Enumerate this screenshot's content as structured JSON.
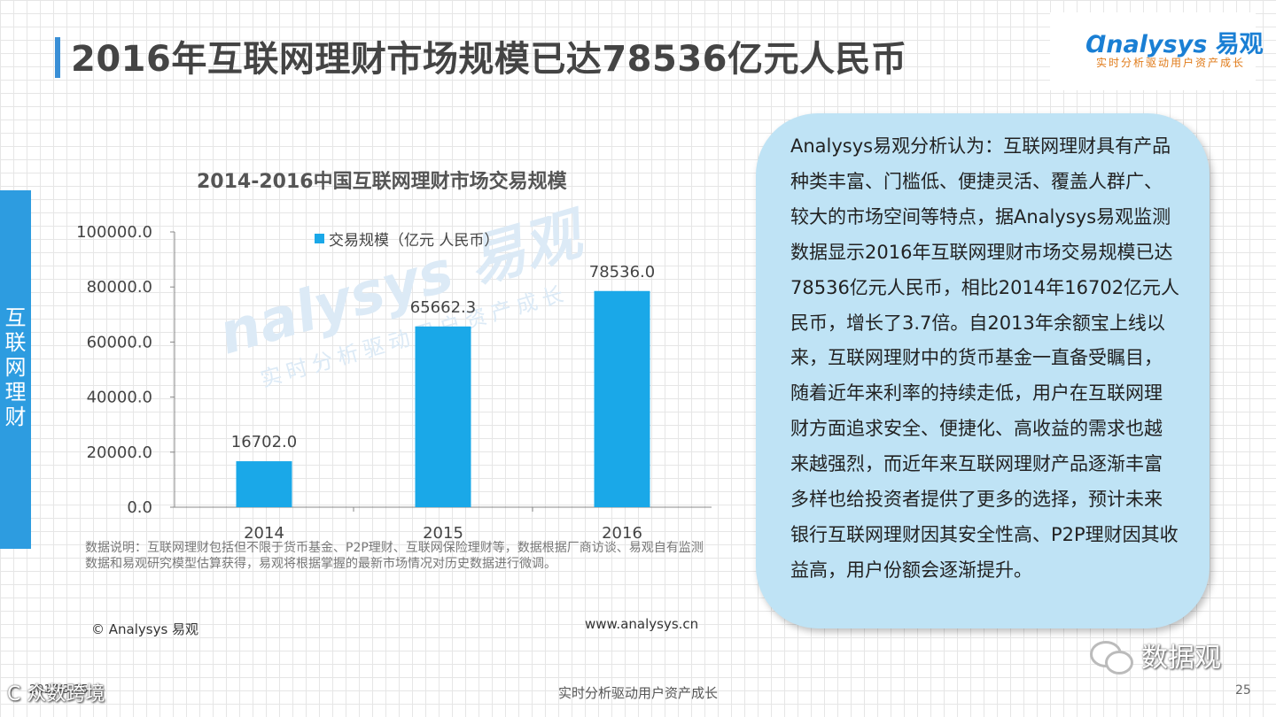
{
  "header": {
    "title": "2016年互联网理财市场规模已达78536亿元人民币",
    "logo_brand": "nalysys",
    "logo_cn": "易观",
    "logo_tagline": "实时分析驱动用户资产成长"
  },
  "side_tab": {
    "label": "互联网理财"
  },
  "watermark": {
    "brand": "nalysys 易观",
    "tagline": "实时分析驱动用户资产成长"
  },
  "chart_data": {
    "type": "bar",
    "title": "2014-2016中国互联网理财市场交易规模",
    "categories": [
      "2014",
      "2015",
      "2016"
    ],
    "series": [
      {
        "name": "交易规模（亿元 人民币）",
        "values": [
          16702.0,
          65662.3,
          78536.0
        ]
      }
    ],
    "value_labels": [
      "16702.0",
      "65662.3",
      "78536.0"
    ],
    "yticks": [
      "0.0",
      "20000.0",
      "40000.0",
      "60000.0",
      "80000.0",
      "100000.0"
    ],
    "ylim": [
      0,
      100000
    ],
    "xlabel": "",
    "ylabel": "",
    "grid": false,
    "legend_position": "top",
    "bar_color": "#1aa8e8"
  },
  "source_note": "数据说明：互联网理财包括但不限于货币基金、P2P理财、互联网保险理财等，数据根据厂商访谈、易观自有监测数据和易观研究模型估算获得，易观将根据掌握的最新市场情况对历史数据进行微调。",
  "copyright": "© Analysys 易观",
  "website": "www.analysys.cn",
  "analysis_text": "Analysys易观分析认为：互联网理财具有产品种类丰富、门槛低、便捷灵活、覆盖人群广、较大的市场空间等特点，据Analysys易观监测数据显示2016年互联网理财市场交易规模已达 78536亿元人民币，相比2014年16702亿元人民币，增长了3.7倍。自2013年余额宝上线以来，互联网理财中的货币基金一直备受瞩目，随着近年来利率的持续走低，用户在互联网理财方面追求安全、便捷化、高收益的需求也越来越强烈，而近年来互联网理财产品逐渐丰富多样也给投资者提供了更多的选择，预计未来银行互联网理财因其安全性高、P2P理财因其收益高，用户份额会逐渐提升。",
  "wechat_label": "数据观",
  "footer": {
    "left_watermark": "C 众数跨境",
    "date": "2017/3/15",
    "center": "实时分析驱动用户资产成长",
    "page_number": "25"
  }
}
